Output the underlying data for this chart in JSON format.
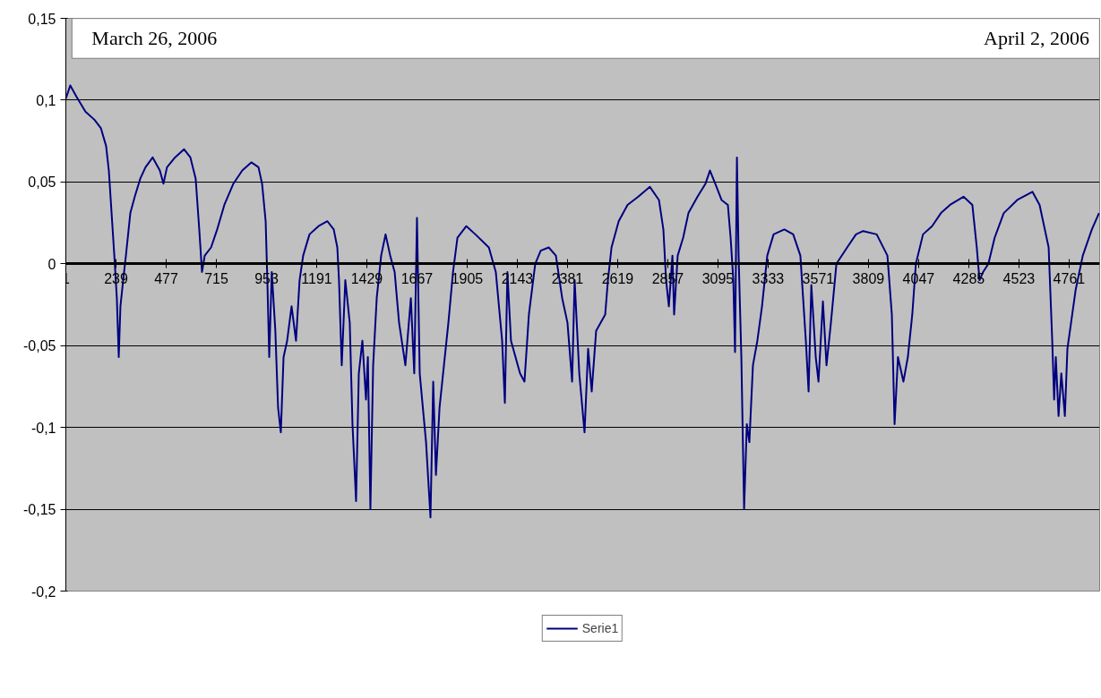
{
  "chart_data": {
    "type": "line",
    "annotations": [
      "March 26, 2006",
      "April 2, 2006"
    ],
    "xlim": [
      1,
      4906
    ],
    "xticks": [
      1,
      239,
      477,
      715,
      953,
      1191,
      1429,
      1667,
      1905,
      2143,
      2381,
      2619,
      2857,
      3095,
      3333,
      3571,
      3809,
      4047,
      4285,
      4523,
      4761
    ],
    "ylim": [
      -0.2,
      0.15
    ],
    "yticks": [
      {
        "value": -0.2,
        "label": "-0,2"
      },
      {
        "value": -0.15,
        "label": "-0,15"
      },
      {
        "value": -0.1,
        "label": "-0,1"
      },
      {
        "value": -0.05,
        "label": "-0,05"
      },
      0,
      {
        "value": 0.05,
        "label": "0,05"
      },
      {
        "value": 0.1,
        "label": "0,1"
      },
      {
        "value": 0.15,
        "label": "0,15"
      }
    ],
    "grid": "y",
    "legend": "bottom",
    "marker": "none",
    "line_style": "solid",
    "series": [
      {
        "name": "Serie1",
        "color": "#000080",
        "x": [
          1,
          22,
          52,
          94,
          137,
          167,
          192,
          205,
          218,
          231,
          243,
          252,
          260,
          273,
          286,
          307,
          328,
          354,
          379,
          413,
          447,
          464,
          481,
          519,
          562,
          592,
          617,
          634,
          647,
          660,
          690,
          719,
          753,
          796,
          838,
          881,
          915,
          932,
          949,
          957,
          966,
          978,
          995,
          1008,
          1021,
          1034,
          1051,
          1072,
          1093,
          1110,
          1127,
          1157,
          1200,
          1242,
          1272,
          1289,
          1297,
          1310,
          1327,
          1348,
          1361,
          1378,
          1391,
          1408,
          1425,
          1434,
          1446,
          1459,
          1476,
          1497,
          1518,
          1540,
          1561,
          1582,
          1612,
          1638,
          1654,
          1667,
          1680,
          1710,
          1731,
          1744,
          1757,
          1774,
          1795,
          1816,
          1838,
          1859,
          1901,
          1944,
          2008,
          2041,
          2071,
          2084,
          2096,
          2113,
          2156,
          2177,
          2198,
          2228,
          2254,
          2292,
          2326,
          2356,
          2381,
          2403,
          2415,
          2437,
          2462,
          2479,
          2496,
          2517,
          2560,
          2573,
          2590,
          2624,
          2666,
          2717,
          2772,
          2815,
          2836,
          2849,
          2862,
          2879,
          2887,
          2904,
          2930,
          2955,
          2998,
          3036,
          3057,
          3082,
          3112,
          3142,
          3155,
          3168,
          3176,
          3185,
          3193,
          3206,
          3219,
          3232,
          3244,
          3261,
          3282,
          3304,
          3329,
          3359,
          3410,
          3452,
          3486,
          3499,
          3512,
          3525,
          3538,
          3559,
          3572,
          3593,
          3610,
          3631,
          3657,
          3708,
          3750,
          3784,
          3848,
          3899,
          3920,
          3933,
          3949,
          3975,
          3996,
          4017,
          4034,
          4068,
          4111,
          4153,
          4196,
          4260,
          4302,
          4323,
          4336,
          4353,
          4378,
          4408,
          4451,
          4515,
          4587,
          4621,
          4664,
          4681,
          4690,
          4698,
          4711,
          4724,
          4741,
          4753,
          4792,
          4826,
          4869,
          4903
        ],
        "values": [
          0.101,
          0.109,
          0.102,
          0.093,
          0.088,
          0.083,
          0.072,
          0.057,
          0.031,
          0.005,
          -0.021,
          -0.057,
          -0.026,
          -0.01,
          0.005,
          0.031,
          0.041,
          0.052,
          0.059,
          0.065,
          0.057,
          0.049,
          0.059,
          0.065,
          0.07,
          0.065,
          0.052,
          0.021,
          -0.005,
          0.005,
          0.01,
          0.021,
          0.036,
          0.049,
          0.057,
          0.062,
          0.059,
          0.049,
          0.026,
          -0.01,
          -0.057,
          -0.005,
          -0.041,
          -0.088,
          -0.103,
          -0.057,
          -0.047,
          -0.026,
          -0.047,
          -0.01,
          0.005,
          0.018,
          0.023,
          0.026,
          0.021,
          0.01,
          -0.01,
          -0.062,
          -0.01,
          -0.036,
          -0.098,
          -0.145,
          -0.067,
          -0.047,
          -0.083,
          -0.057,
          -0.15,
          -0.062,
          -0.021,
          0.005,
          0.018,
          0.005,
          -0.005,
          -0.036,
          -0.062,
          -0.021,
          -0.067,
          0.028,
          -0.067,
          -0.109,
          -0.155,
          -0.072,
          -0.129,
          -0.088,
          -0.062,
          -0.036,
          -0.005,
          0.016,
          0.023,
          0.018,
          0.01,
          -0.005,
          -0.047,
          -0.085,
          -0.005,
          -0.047,
          -0.067,
          -0.072,
          -0.031,
          0.0,
          0.008,
          0.01,
          0.005,
          -0.021,
          -0.036,
          -0.072,
          -0.01,
          -0.067,
          -0.103,
          -0.052,
          -0.078,
          -0.041,
          -0.031,
          -0.01,
          0.01,
          0.026,
          0.036,
          0.041,
          0.047,
          0.039,
          0.021,
          -0.01,
          -0.026,
          0.005,
          -0.031,
          0.005,
          0.016,
          0.031,
          0.041,
          0.049,
          0.057,
          0.049,
          0.039,
          0.036,
          0.016,
          -0.01,
          -0.054,
          0.065,
          0.005,
          -0.057,
          -0.15,
          -0.098,
          -0.109,
          -0.062,
          -0.047,
          -0.026,
          0.005,
          0.018,
          0.021,
          0.018,
          0.005,
          -0.021,
          -0.047,
          -0.078,
          -0.013,
          -0.057,
          -0.072,
          -0.023,
          -0.062,
          -0.036,
          0.0,
          0.01,
          0.018,
          0.02,
          0.018,
          0.005,
          -0.031,
          -0.098,
          -0.057,
          -0.072,
          -0.057,
          -0.031,
          0.0,
          0.018,
          0.023,
          0.031,
          0.036,
          0.041,
          0.036,
          0.01,
          -0.01,
          -0.005,
          0.0,
          0.016,
          0.031,
          0.039,
          0.044,
          0.036,
          0.01,
          -0.047,
          -0.083,
          -0.057,
          -0.093,
          -0.067,
          -0.093,
          -0.052,
          -0.016,
          0.005,
          0.021,
          0.031
        ]
      }
    ]
  }
}
